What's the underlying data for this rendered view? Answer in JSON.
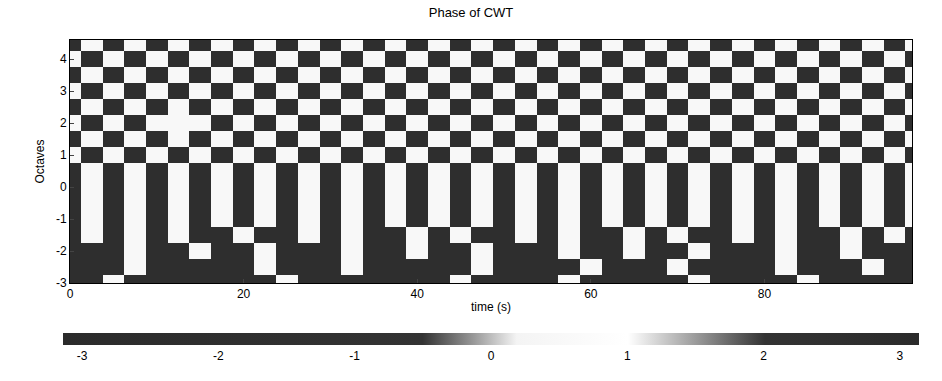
{
  "chart_data": {
    "type": "heatmap",
    "title": "Phase of CWT",
    "x_label": "time (s)",
    "y_label": "Octaves",
    "xlim": [
      0,
      97
    ],
    "xticks": [
      0,
      20,
      40,
      60,
      80
    ],
    "ylim": [
      -3,
      4.6
    ],
    "yticks": [
      -3,
      -2,
      -1,
      0,
      1,
      2,
      3,
      4
    ],
    "grid": false,
    "x": [
      0,
      2.5,
      5,
      7.5,
      10,
      12.5,
      15,
      17.5,
      20,
      22.5,
      25,
      27.5,
      30,
      32.5,
      35,
      37.5,
      40,
      42.5,
      45,
      47.5,
      50,
      52.5,
      55,
      57.5,
      60,
      62.5,
      65,
      67.5,
      70,
      72.5,
      75,
      77.5,
      80,
      82.5,
      85,
      87.5,
      90,
      92.5,
      95,
      97.5
    ],
    "y": [
      -3,
      -2.5,
      -2,
      -1.5,
      -1,
      -0.5,
      0,
      0.5,
      1,
      1.5,
      2,
      2.5,
      3,
      3.5,
      4,
      4.5
    ],
    "z": [
      [
        -2,
        -2,
        0.5,
        -2,
        -2,
        -2,
        -2,
        -2,
        -2,
        -2,
        0.5,
        -2,
        -2,
        -2,
        -2,
        -2,
        -2,
        -2,
        0.5,
        -2,
        -2,
        -2,
        -2,
        0.5,
        -2,
        -2,
        -2,
        -2,
        -2,
        0.5,
        -2,
        -2,
        -2,
        -2,
        0.5,
        -2,
        -2,
        -2,
        -2,
        -2
      ],
      [
        -2,
        -2,
        -2,
        0.5,
        -2,
        -2,
        -2,
        -2,
        -2,
        0.5,
        -2,
        -2,
        -2,
        0.5,
        -2,
        -2,
        -2,
        -2,
        -2,
        0.5,
        -2,
        -2,
        -2,
        -2,
        0.5,
        -2,
        -2,
        -2,
        0.5,
        -2,
        -2,
        -2,
        -2,
        0.5,
        -2,
        -2,
        -2,
        0.5,
        -2,
        -2
      ],
      [
        -2,
        -2,
        -2,
        0.5,
        -2,
        -2,
        0.5,
        -2,
        -2,
        0.5,
        -2,
        -2,
        -2,
        0.5,
        -2,
        -2,
        0.5,
        -2,
        -2,
        0.5,
        -2,
        -2,
        -2,
        0.5,
        -2,
        -2,
        0.5,
        -2,
        -2,
        0.5,
        -2,
        -2,
        -2,
        0.5,
        -2,
        -2,
        0.5,
        -2,
        -2,
        -2
      ],
      [
        -2,
        0.5,
        -2,
        0.5,
        -2,
        0.5,
        -2,
        -2,
        0.5,
        -2,
        -2,
        0.5,
        -2,
        0.5,
        -2,
        -2,
        0.5,
        -2,
        0.5,
        -2,
        -2,
        0.5,
        -2,
        0.5,
        -2,
        -2,
        0.5,
        -2,
        0.5,
        -2,
        -2,
        0.5,
        -2,
        0.5,
        -2,
        -2,
        0.5,
        -2,
        0.5,
        -2
      ],
      [
        -2,
        0.5,
        -2,
        0.5,
        -2,
        0.5,
        -2,
        0.5,
        -2,
        0.5,
        -2,
        0.5,
        -2,
        0.5,
        -2,
        0.5,
        -2,
        0.5,
        -2,
        0.5,
        -2,
        0.5,
        -2,
        0.5,
        -2,
        0.5,
        -2,
        0.5,
        -2,
        0.5,
        -2,
        0.5,
        -2,
        0.5,
        -2,
        0.5,
        -2,
        0.5,
        -2,
        0.5
      ],
      [
        -2,
        0.5,
        -2,
        0.5,
        -2,
        0.5,
        -2,
        0.5,
        -2,
        0.5,
        -2,
        0.5,
        -2,
        0.5,
        -2,
        0.5,
        -2,
        0.5,
        -2,
        0.5,
        -2,
        0.5,
        -2,
        0.5,
        -2,
        0.5,
        -2,
        0.5,
        -2,
        0.5,
        -2,
        0.5,
        -2,
        0.5,
        -2,
        0.5,
        -2,
        0.5,
        -2,
        0.5
      ],
      [
        -2,
        0.5,
        -2,
        0.5,
        -2,
        0.5,
        -2,
        0.5,
        -2,
        0.5,
        -2,
        0.5,
        -2,
        0.5,
        -2,
        0.5,
        -2,
        0.5,
        -2,
        0.5,
        -2,
        0.5,
        -2,
        0.5,
        -2,
        0.5,
        -2,
        0.5,
        -2,
        0.5,
        -2,
        0.5,
        -2,
        0.5,
        -2,
        0.5,
        -2,
        0.5,
        -2,
        0.5
      ],
      [
        -2,
        0.5,
        -2,
        0.5,
        -2,
        0.5,
        -2,
        0.5,
        -2,
        0.5,
        -2,
        0.5,
        -2,
        0.5,
        -2,
        0.5,
        -2,
        0.5,
        -2,
        0.5,
        -2,
        0.5,
        -2,
        0.5,
        -2,
        0.5,
        -2,
        0.5,
        -2,
        0.5,
        -2,
        0.5,
        -2,
        0.5,
        -2,
        0.5,
        -2,
        0.5,
        -2,
        0.5
      ],
      [
        0.5,
        -2,
        0.5,
        -2,
        0.5,
        -2,
        0.5,
        -2,
        0.5,
        -2,
        0.5,
        -2,
        0.5,
        -2,
        0.5,
        -2,
        0.5,
        -2,
        0.5,
        -2,
        0.5,
        -2,
        0.5,
        -2,
        0.5,
        -2,
        0.5,
        -2,
        0.5,
        -2,
        0.5,
        -2,
        0.5,
        -2,
        0.5,
        -2,
        0.5,
        -2,
        0.5,
        -2
      ],
      [
        -2,
        0.5,
        -2,
        0.5,
        -2,
        0.5,
        -2,
        0.5,
        -2,
        0.5,
        -2,
        0.5,
        -2,
        0.5,
        -2,
        0.5,
        -2,
        0.5,
        -2,
        0.5,
        -2,
        0.5,
        -2,
        0.5,
        -2,
        0.5,
        -2,
        0.5,
        -2,
        0.5,
        -2,
        0.5,
        -2,
        0.5,
        -2,
        0.5,
        -2,
        0.5,
        -2,
        0.5
      ],
      [
        0.5,
        -2,
        0.5,
        -2,
        0.5,
        0.5,
        0.5,
        -2,
        0.5,
        -2,
        0.5,
        -2,
        0.5,
        -2,
        0.5,
        -2,
        0.5,
        -2,
        0.5,
        -2,
        0.5,
        -2,
        0.5,
        -2,
        0.5,
        -2,
        0.5,
        -2,
        0.5,
        -2,
        0.5,
        -2,
        0.5,
        -2,
        0.5,
        -2,
        0.5,
        -2,
        0.5,
        -2
      ],
      [
        -2,
        0.5,
        -2,
        0.5,
        -2,
        0.5,
        -2,
        0.5,
        -2,
        0.5,
        -2,
        0.5,
        -2,
        0.5,
        -2,
        0.5,
        -2,
        0.5,
        -2,
        0.5,
        -2,
        0.5,
        -2,
        0.5,
        -2,
        0.5,
        -2,
        0.5,
        -2,
        0.5,
        -2,
        0.5,
        -2,
        0.5,
        -2,
        0.5,
        -2,
        0.5,
        -2,
        0.5
      ],
      [
        0.5,
        -2,
        0.5,
        -2,
        0.5,
        -2,
        0.5,
        -2,
        0.5,
        -2,
        0.5,
        -2,
        0.5,
        -2,
        0.5,
        -2,
        0.5,
        -2,
        0.5,
        -2,
        0.5,
        -2,
        0.5,
        -2,
        0.5,
        -2,
        0.5,
        -2,
        0.5,
        -2,
        0.5,
        -2,
        0.5,
        -2,
        0.5,
        -2,
        0.5,
        -2,
        0.5,
        -2
      ],
      [
        -2,
        0.5,
        -2,
        0.5,
        -2,
        0.5,
        -2,
        0.5,
        -2,
        0.5,
        -2,
        0.5,
        -2,
        0.5,
        -2,
        0.5,
        -2,
        0.5,
        -2,
        0.5,
        -2,
        0.5,
        -2,
        0.5,
        -2,
        0.5,
        -2,
        0.5,
        -2,
        0.5,
        -2,
        0.5,
        -2,
        0.5,
        -2,
        0.5,
        -2,
        0.5,
        -2,
        0.5
      ],
      [
        0.5,
        -2,
        0.5,
        -2,
        0.5,
        -2,
        0.5,
        -2,
        0.5,
        -2,
        0.5,
        -2,
        0.5,
        -2,
        0.5,
        -2,
        0.5,
        -2,
        0.5,
        -2,
        0.5,
        -2,
        0.5,
        -2,
        0.5,
        -2,
        0.5,
        -2,
        0.5,
        -2,
        0.5,
        -2,
        0.5,
        -2,
        0.5,
        -2,
        0.5,
        -2,
        0.5,
        -2
      ],
      [
        -2,
        0.5,
        -2,
        0.5,
        -2,
        0.5,
        -2,
        0.5,
        -2,
        0.5,
        -2,
        0.5,
        -2,
        0.5,
        -2,
        0.5,
        -2,
        0.5,
        -2,
        0.5,
        -2,
        0.5,
        -2,
        0.5,
        -2,
        0.5,
        -2,
        0.5,
        -2,
        0.5,
        -2,
        0.5,
        -2,
        0.5,
        -2,
        0.5,
        -2,
        0.5,
        -2,
        0.5
      ]
    ],
    "zlim": [
      -3.14,
      3.14
    ],
    "zticks": [
      -3,
      -2,
      -1,
      0,
      1,
      2,
      3
    ]
  }
}
